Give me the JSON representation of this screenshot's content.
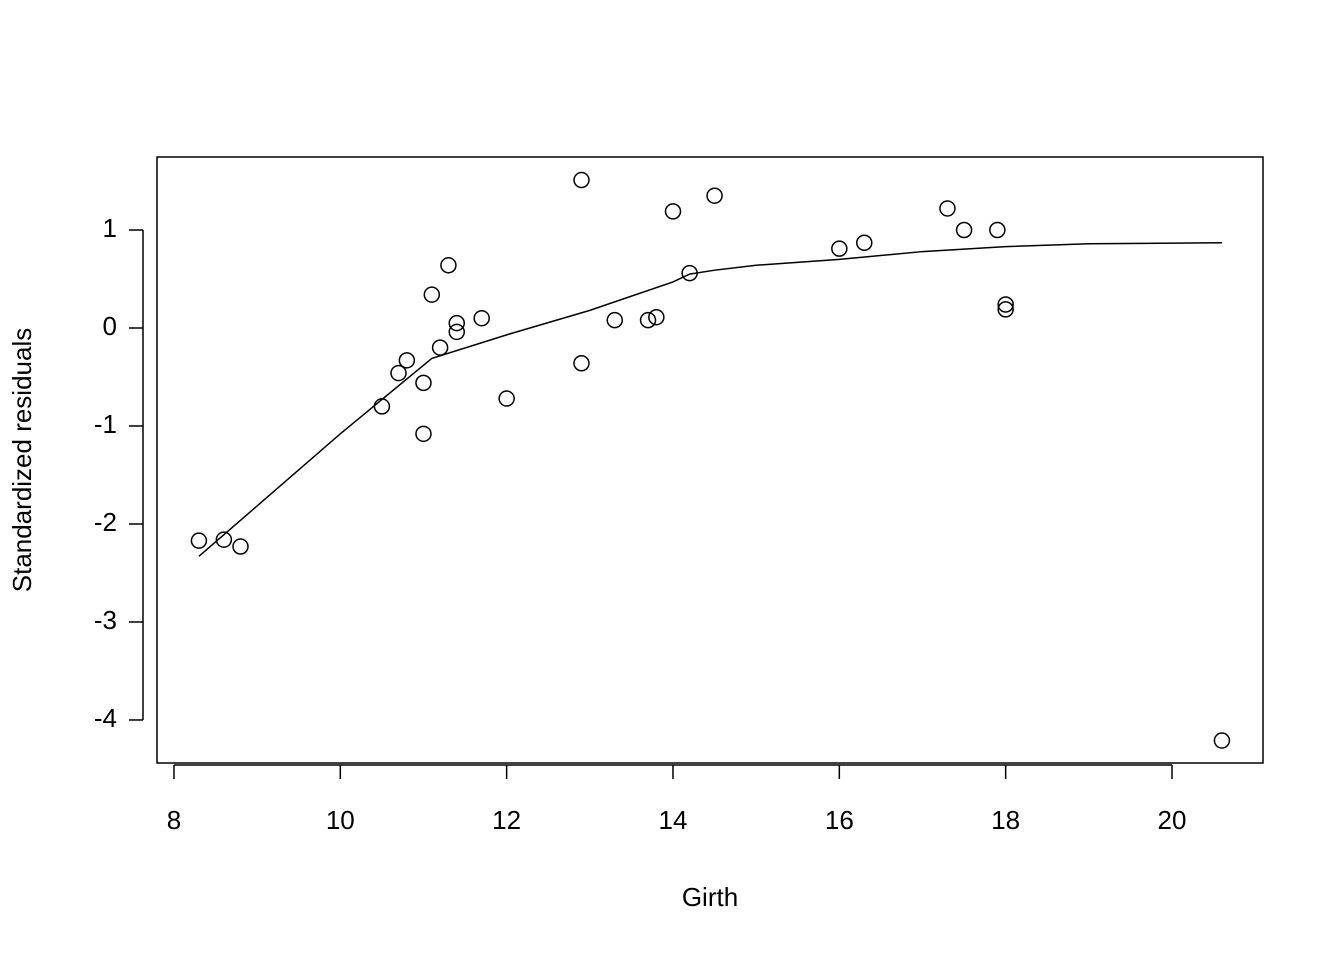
{
  "chart_data": {
    "type": "scatter",
    "xlabel": "Girth",
    "ylabel": "Standardized residuals",
    "x": [
      8.3,
      8.6,
      8.8,
      10.5,
      10.7,
      10.8,
      11.0,
      11.0,
      11.1,
      11.2,
      11.3,
      11.4,
      11.4,
      11.7,
      12.0,
      12.9,
      12.9,
      13.3,
      13.7,
      13.8,
      14.0,
      14.2,
      14.5,
      16.0,
      16.3,
      17.3,
      17.5,
      17.9,
      18.0,
      18.0,
      20.6
    ],
    "values": [
      -2.17,
      -2.16,
      -2.23,
      -0.8,
      -0.46,
      -0.33,
      -0.56,
      -1.08,
      0.34,
      -0.2,
      0.64,
      0.05,
      -0.04,
      0.1,
      -0.72,
      1.51,
      -0.36,
      0.08,
      0.08,
      0.11,
      1.19,
      0.56,
      1.35,
      0.81,
      0.87,
      1.22,
      1.0,
      1.0,
      0.24,
      0.19,
      -4.21
    ],
    "color": "#000000",
    "smooth": {
      "x": [
        8.3,
        10,
        11.1,
        12,
        13,
        14,
        14.2,
        14.5,
        15,
        16,
        17,
        18,
        19,
        20.6
      ],
      "values": [
        -2.33,
        -1.08,
        -0.31,
        -0.07,
        0.18,
        0.47,
        0.55,
        0.59,
        0.64,
        0.7,
        0.78,
        0.83,
        0.86,
        0.87
      ]
    },
    "xlim": [
      7.796,
      21.094
    ],
    "ylim": [
      -4.439,
      1.745
    ],
    "xticks": [
      8,
      10,
      12,
      14,
      16,
      18,
      20
    ],
    "yticks": [
      -4,
      -3,
      -2,
      -1,
      0,
      1
    ]
  }
}
